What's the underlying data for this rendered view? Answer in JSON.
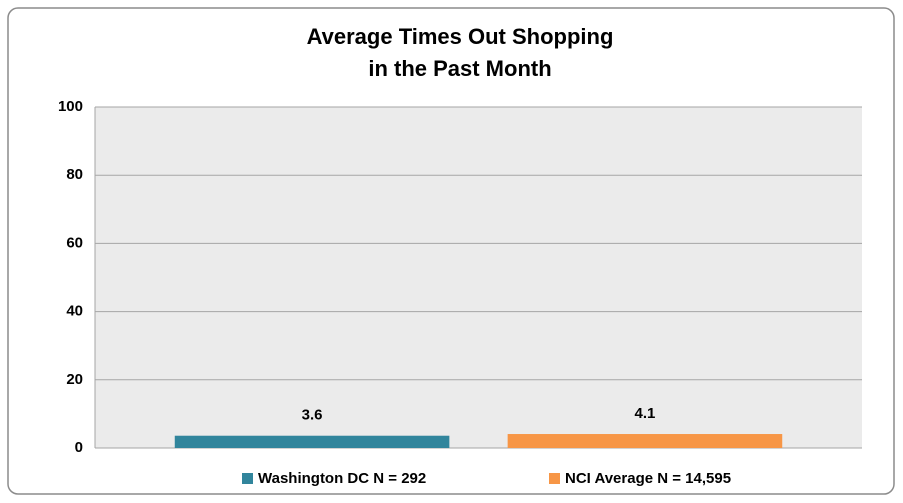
{
  "chart_data": {
    "type": "bar",
    "title": [
      "Average Times Out Shopping",
      "in the Past Month"
    ],
    "categories": [
      null
    ],
    "series": [
      {
        "name": "Washington DC N = 292",
        "color": "#31859c",
        "values": [
          3.6
        ]
      },
      {
        "name": "NCI Average N = 14,595",
        "color": "#f79646",
        "values": [
          4.1
        ]
      }
    ],
    "ylim": [
      0,
      100
    ],
    "yticks": [
      0,
      20,
      40,
      60,
      80,
      100
    ],
    "grid": true,
    "legend": "bottom"
  }
}
